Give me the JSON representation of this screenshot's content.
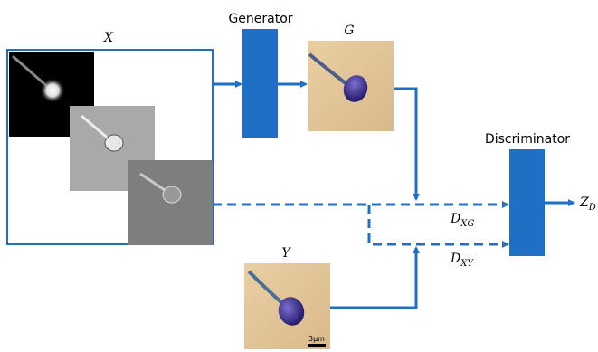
{
  "labels": {
    "x": "X",
    "generator": "Generator",
    "g": "G",
    "discriminator": "Discriminator",
    "z": {
      "base": "Z",
      "sub": "D"
    },
    "dxg": {
      "base": "D",
      "sub": "XG"
    },
    "dxy": {
      "base": "D",
      "sub": "XY"
    },
    "y": "Y",
    "scale": "3μm"
  }
}
